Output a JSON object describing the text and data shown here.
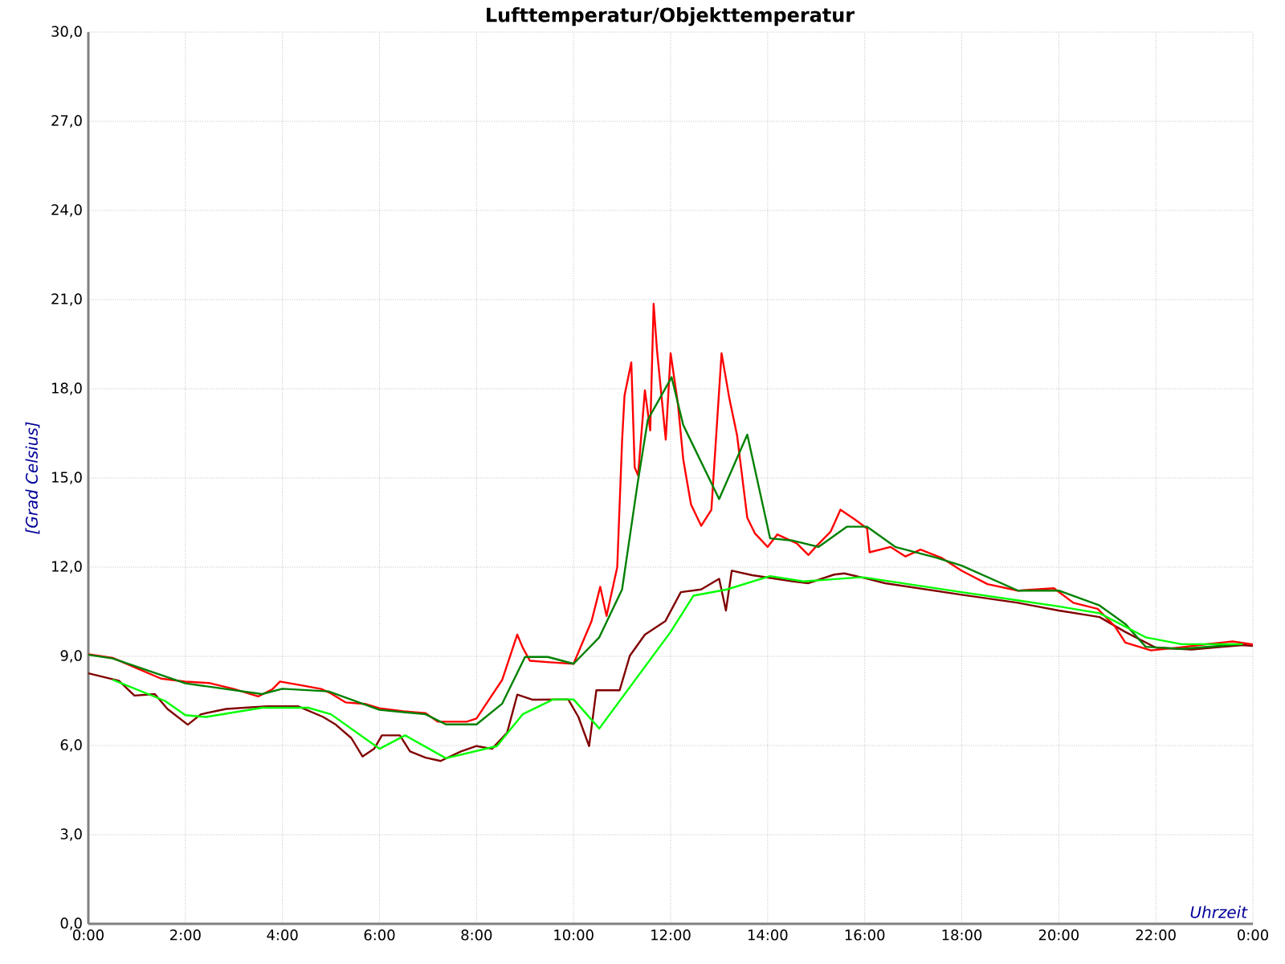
{
  "chart_data": {
    "type": "line",
    "title": "Lufttemperatur/Objekttemperatur",
    "xlabel": "Uhrzeit",
    "ylabel": "[Grad Celsius]",
    "xlim": [
      0,
      24
    ],
    "ylim": [
      0,
      30
    ],
    "xticks": [
      {
        "value": 0,
        "label": "0:00"
      },
      {
        "value": 2,
        "label": "2:00"
      },
      {
        "value": 4,
        "label": "4:00"
      },
      {
        "value": 6,
        "label": "6:00"
      },
      {
        "value": 8,
        "label": "8:00"
      },
      {
        "value": 10,
        "label": "10:00"
      },
      {
        "value": 12,
        "label": "12:00"
      },
      {
        "value": 14,
        "label": "14:00"
      },
      {
        "value": 16,
        "label": "16:00"
      },
      {
        "value": 18,
        "label": "18:00"
      },
      {
        "value": 20,
        "label": "20:00"
      },
      {
        "value": 22,
        "label": "22:00"
      },
      {
        "value": 24,
        "label": "0:00"
      }
    ],
    "yticks": [
      {
        "value": 0,
        "label": "0,0"
      },
      {
        "value": 3,
        "label": "3,0"
      },
      {
        "value": 6,
        "label": "6,0"
      },
      {
        "value": 9,
        "label": "9,0"
      },
      {
        "value": 12,
        "label": "12,0"
      },
      {
        "value": 15,
        "label": "15,0"
      },
      {
        "value": 18,
        "label": "18,0"
      },
      {
        "value": 21,
        "label": "21,0"
      },
      {
        "value": 24,
        "label": "24,0"
      },
      {
        "value": 27,
        "label": "27,0"
      },
      {
        "value": 30,
        "label": "30,0"
      }
    ],
    "grid": true,
    "marker": "none",
    "line_style": "solid",
    "series": [
      {
        "color": "#800000",
        "x": [
          0,
          0.63,
          0.95,
          1.37,
          1.63,
          2.05,
          2.32,
          2.84,
          3.68,
          4.32,
          4.84,
          5.1,
          5.42,
          5.65,
          5.89,
          6.05,
          6.42,
          6.63,
          6.95,
          7.26,
          7.68,
          8.0,
          8.32,
          8.63,
          8.84,
          9.16,
          9.89,
          10.1,
          10.32,
          10.47,
          10.95,
          11.16,
          11.47,
          11.89,
          12.21,
          12.63,
          13.0,
          13.14,
          13.26,
          13.68,
          14.53,
          14.84,
          15.37,
          15.58,
          16.05,
          16.42,
          18.0,
          19.16,
          20.0,
          20.84,
          21.37,
          22.0,
          22.74,
          23.79,
          24.0
        ],
        "values": [
          8.43,
          8.18,
          7.68,
          7.73,
          7.23,
          6.7,
          7.05,
          7.23,
          7.32,
          7.32,
          6.96,
          6.7,
          6.25,
          5.63,
          5.89,
          6.34,
          6.34,
          5.8,
          5.59,
          5.48,
          5.8,
          5.98,
          5.89,
          6.43,
          7.71,
          7.54,
          7.55,
          6.96,
          5.98,
          7.86,
          7.86,
          9.02,
          9.73,
          10.18,
          11.16,
          11.25,
          11.61,
          10.54,
          11.88,
          11.73,
          11.52,
          11.46,
          11.75,
          11.79,
          11.61,
          11.46,
          11.07,
          10.8,
          10.54,
          10.32,
          9.82,
          9.29,
          9.23,
          9.38,
          9.35
        ]
      },
      {
        "color": "#ff0000",
        "x": [
          0,
          0.5,
          1.0,
          1.5,
          2.0,
          2.5,
          3.0,
          3.5,
          3.8,
          3.95,
          4.3,
          4.8,
          5.0,
          5.3,
          5.7,
          6.0,
          6.5,
          6.95,
          7.2,
          7.8,
          8.0,
          8.2,
          8.53,
          8.84,
          8.95,
          9.1,
          9.5,
          10.0,
          10.37,
          10.55,
          10.68,
          10.9,
          11.0,
          11.05,
          11.19,
          11.26,
          11.33,
          11.47,
          11.58,
          11.65,
          11.72,
          11.9,
          12.0,
          12.15,
          12.26,
          12.42,
          12.63,
          12.84,
          13.05,
          13.21,
          13.37,
          13.58,
          13.74,
          14.0,
          14.2,
          14.6,
          14.84,
          15.0,
          15.3,
          15.5,
          15.8,
          16.05,
          16.1,
          16.53,
          16.84,
          17.15,
          17.6,
          18.0,
          18.53,
          19.16,
          19.9,
          20.3,
          20.8,
          21.16,
          21.37,
          21.9,
          22.5,
          23.0,
          23.58,
          24.0
        ],
        "values": [
          9.07,
          8.95,
          8.6,
          8.25,
          8.15,
          8.1,
          7.9,
          7.65,
          7.9,
          8.15,
          8.05,
          7.9,
          7.75,
          7.45,
          7.4,
          7.25,
          7.15,
          7.09,
          6.8,
          6.8,
          6.91,
          7.4,
          8.21,
          9.73,
          9.3,
          8.85,
          8.8,
          8.75,
          10.18,
          11.34,
          10.36,
          12.0,
          16.25,
          17.77,
          18.89,
          15.36,
          15.09,
          17.95,
          16.6,
          20.86,
          19.29,
          16.29,
          19.2,
          17.5,
          15.63,
          14.11,
          13.39,
          13.93,
          19.2,
          17.68,
          16.43,
          13.66,
          13.13,
          12.68,
          13.1,
          12.8,
          12.41,
          12.7,
          13.2,
          13.93,
          13.6,
          13.3,
          12.5,
          12.68,
          12.36,
          12.59,
          12.3,
          11.88,
          11.43,
          11.21,
          11.29,
          10.8,
          10.6,
          10.0,
          9.46,
          9.2,
          9.3,
          9.4,
          9.5,
          9.4
        ]
      },
      {
        "color": "#008000",
        "x": [
          0,
          0.5,
          2.0,
          3.58,
          4.0,
          4.95,
          6.0,
          6.95,
          7.37,
          8.0,
          8.53,
          9.0,
          9.47,
          10.0,
          10.53,
          11.0,
          11.32,
          11.53,
          12.02,
          12.26,
          13.0,
          13.58,
          14.05,
          14.53,
          15.05,
          15.63,
          16.05,
          16.63,
          17.47,
          18.0,
          19.16,
          20.0,
          20.84,
          21.37,
          21.79,
          22.53,
          23.79
        ],
        "values": [
          9.05,
          8.93,
          8.09,
          7.73,
          7.91,
          7.82,
          7.2,
          7.05,
          6.71,
          6.71,
          7.41,
          8.98,
          8.98,
          8.75,
          9.64,
          11.25,
          14.82,
          16.96,
          18.39,
          16.78,
          14.29,
          16.46,
          12.97,
          12.89,
          12.68,
          13.36,
          13.36,
          12.68,
          12.32,
          12.05,
          11.21,
          11.21,
          10.71,
          10.09,
          9.32,
          9.25,
          9.41
        ]
      },
      {
        "color": "#00ff00",
        "x": [
          0.5,
          1.58,
          2.0,
          2.42,
          3.58,
          4.53,
          5.0,
          6.0,
          6.53,
          7.37,
          8.42,
          8.95,
          9.58,
          10.0,
          10.53,
          12.0,
          12.47,
          13.16,
          14.05,
          14.74,
          15.9,
          16.05,
          18.0,
          20.0,
          20.84,
          21.79,
          22.53,
          23.79
        ],
        "values": [
          8.21,
          7.5,
          7.02,
          6.96,
          7.27,
          7.27,
          7.05,
          5.89,
          6.34,
          5.57,
          5.98,
          7.05,
          7.55,
          7.55,
          6.57,
          9.82,
          11.04,
          11.25,
          11.7,
          11.52,
          11.66,
          11.64,
          11.16,
          10.68,
          10.45,
          9.64,
          9.41,
          9.41
        ]
      }
    ]
  }
}
